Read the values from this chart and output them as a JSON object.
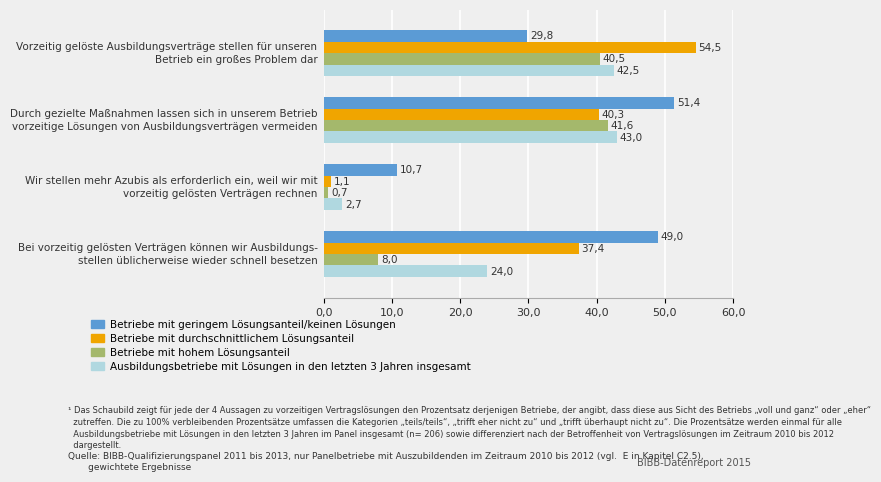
{
  "groups": [
    {
      "label": "Vorzeitig gelöste Ausbildungsverträge stellen für unseren\nBetrieb ein großes Problem dar",
      "values": [
        29.8,
        54.5,
        40.5,
        42.5
      ]
    },
    {
      "label": "Durch gezielte Maßnahmen lassen sich in unserem Betrieb\nvorzeitige Lösungen von Ausbildungsverträgen vermeiden",
      "values": [
        51.4,
        40.3,
        41.6,
        43.0
      ]
    },
    {
      "label": "Wir stellen mehr Azubis als erforderlich ein, weil wir mit\nvorzeitig gelösten Verträgen rechnen",
      "values": [
        10.7,
        1.1,
        0.7,
        2.7
      ]
    },
    {
      "label": "Bei vorzeitig gelösten Verträgen können wir Ausbildungs-\nstellen üblicherweise wieder schnell besetzen",
      "values": [
        49.0,
        37.4,
        8.0,
        24.0
      ]
    }
  ],
  "series_labels": [
    "Betriebe mit geringem Lösungsanteil/keinen Lösungen",
    "Betriebe mit durchschnittlichem Lösungsanteil",
    "Betriebe mit hohem Lösungsanteil",
    "Ausbildungsbetriebe mit Lösungen in den letzten 3 Jahren insgesamt"
  ],
  "colors": [
    "#5b9bd5",
    "#f0a500",
    "#a4b86c",
    "#b0d8e0"
  ],
  "xlim": [
    0,
    60
  ],
  "xticks": [
    0,
    10,
    20,
    30,
    40,
    50,
    60
  ],
  "xtick_labels": [
    "0,0",
    "10,0",
    "20,0",
    "30,0",
    "40,0",
    "50,0",
    "60,0"
  ],
  "footnote1": "¹ Das Schaubild zeigt für jede der 4 Aussagen zu vorzeitigen Vertragslösungen den Prozentsatz derjenigen Betriebe, der angibt, dass diese aus Sicht des Betriebs „voll und ganz“ oder „eher“\n  zutreffen. Die zu 100% verbleibenden Prozentsätze umfassen die Kategorien „teils/teils“, „trifft eher nicht zu“ und „trifft überhaupt nicht zu“. Die Prozentsätze werden einmal für alle\n  Ausbildungsbetriebe mit Lösungen in den letzten 3 Jahren im Panel insgesamt (n= 206) sowie differenziert nach der Betroffenheit von Vertragslösungen im Zeitraum 2010 bis 2012\n  dargestellt.",
  "source_plain": "Quelle: BIBB-Qualifizierungspanel 2011 bis 2013, nur Panelbetriebe mit Auszubildenden im Zeitraum 2010 bis 2012 (vgl.  E in Kapitel C2.5),\n       gewichtete Ergebnisse",
  "branding": "BIBB-Datenreport 2015",
  "bg_color": "#efefef"
}
